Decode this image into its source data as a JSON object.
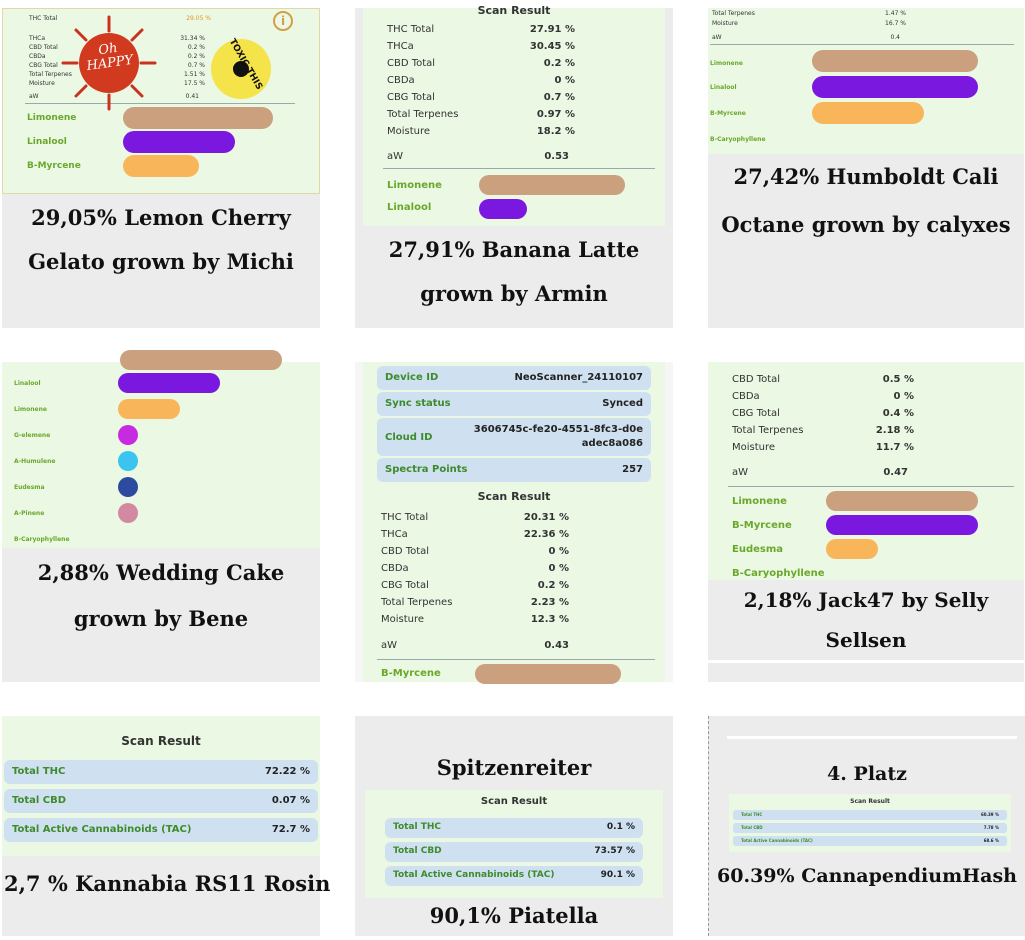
{
  "cards": [
    {
      "caption": "29,05% Lemon Cherry Gelato grown by Michi",
      "rows": [
        {
          "k": "THC Total",
          "v": "29.05 %"
        },
        {
          "k": "THCa",
          "v": "31.34 %"
        },
        {
          "k": "CBD Total",
          "v": "0.2 %"
        },
        {
          "k": "CBDa",
          "v": "0.2 %"
        },
        {
          "k": "CBG Total",
          "v": "0.7 %"
        },
        {
          "k": "Total Terpenes",
          "v": "1.51 %"
        },
        {
          "k": "Moisture",
          "v": "17.5 %"
        },
        {
          "k": "aW",
          "v": "0.41"
        }
      ],
      "sticker_text": "Oh HAPPY",
      "stamp_text": "TOXIC THIS IS",
      "terpenes": [
        "Limonene",
        "Linalool",
        "B-Myrcene"
      ]
    },
    {
      "caption": "27,91% Banana Latte grown by Armin",
      "scan_title": "Scan Result",
      "rows": [
        {
          "k": "THC Total",
          "v": "27.91 %"
        },
        {
          "k": "THCa",
          "v": "30.45 %"
        },
        {
          "k": "CBD Total",
          "v": "0.2 %"
        },
        {
          "k": "CBDa",
          "v": "0 %"
        },
        {
          "k": "CBG Total",
          "v": "0.7 %"
        },
        {
          "k": "Total Terpenes",
          "v": "0.97 %"
        },
        {
          "k": "Moisture",
          "v": "18.2 %"
        },
        {
          "k": "aW",
          "v": "0.53"
        }
      ],
      "terpenes": [
        "Limonene",
        "Linalool"
      ]
    },
    {
      "caption": "27,42% Humboldt Cali Octane grown by calyxes",
      "rows": [
        {
          "k": "Total Terpenes",
          "v": "1.47 %"
        },
        {
          "k": "Moisture",
          "v": "16.7 %"
        },
        {
          "k": "aW",
          "v": "0.4"
        }
      ],
      "terpenes": [
        "Limonene",
        "Linalool",
        "B-Myrcene",
        "B-Caryophyllene"
      ]
    },
    {
      "caption": "2,88% Wedding Cake grown by Bene",
      "terpenes": [
        "Linalool",
        "Limonene",
        "G-elemene",
        "A-Humulene",
        "Eudesma",
        "A-Pinene",
        "B-Caryophyllene"
      ]
    },
    {
      "caption": "",
      "device": [
        {
          "k": "Device ID",
          "v": "NeoScanner_24110107"
        },
        {
          "k": "Sync status",
          "v": "Synced"
        },
        {
          "k": "Cloud ID",
          "v": "3606745c-fe20-4551-8fc3-d0e",
          "v2": "adec8a086"
        },
        {
          "k": "Spectra Points",
          "v": "257"
        }
      ],
      "scan_title": "Scan Result",
      "rows": [
        {
          "k": "THC Total",
          "v": "20.31 %"
        },
        {
          "k": "THCa",
          "v": "22.36 %"
        },
        {
          "k": "CBD Total",
          "v": "0 %"
        },
        {
          "k": "CBDa",
          "v": "0 %"
        },
        {
          "k": "CBG Total",
          "v": "0.2 %"
        },
        {
          "k": "Total Terpenes",
          "v": "2.23 %"
        },
        {
          "k": "Moisture",
          "v": "12.3 %"
        },
        {
          "k": "aW",
          "v": "0.43"
        }
      ],
      "terpenes": [
        "B-Myrcene"
      ]
    },
    {
      "caption": "2,18% Jack47 by Selly Sellsen",
      "rows": [
        {
          "k": "CBD Total",
          "v": "0.5 %"
        },
        {
          "k": "CBDa",
          "v": "0 %"
        },
        {
          "k": "CBG Total",
          "v": "0.4 %"
        },
        {
          "k": "Total Terpenes",
          "v": "2.18 %"
        },
        {
          "k": "Moisture",
          "v": "11.7 %"
        },
        {
          "k": "aW",
          "v": "0.47"
        }
      ],
      "terpenes": [
        "Limonene",
        "B-Myrcene",
        "Eudesma",
        "B-Caryophyllene"
      ]
    },
    {
      "caption": "2,7 % Kannabia RS11 Rosin",
      "scan_title": "Scan Result",
      "rows": [
        {
          "k": "Total THC",
          "v": "72.22 %"
        },
        {
          "k": "Total CBD",
          "v": "0.07 %"
        },
        {
          "k": "Total Active Cannabinoids (TAC)",
          "v": "72.7 %"
        }
      ]
    },
    {
      "heading": "Spitzenreiter",
      "caption": "90,1% Piatella",
      "scan_title": "Scan Result",
      "rows": [
        {
          "k": "Total THC",
          "v": "0.1 %"
        },
        {
          "k": "Total CBD",
          "v": "73.57 %"
        },
        {
          "k": "Total Active Cannabinoids (TAC)",
          "v": "90.1 %"
        }
      ]
    },
    {
      "heading": "4. Platz",
      "caption": "60.39% CannapendiumHash",
      "scan_title": "Scan Result",
      "rows": [
        {
          "k": "Total THC",
          "v": "60.39 %"
        },
        {
          "k": "Total CBD",
          "v": "7.78 %"
        },
        {
          "k": "Total Active Cannabinoids (TAC)",
          "v": "68.6 %"
        }
      ]
    }
  ]
}
